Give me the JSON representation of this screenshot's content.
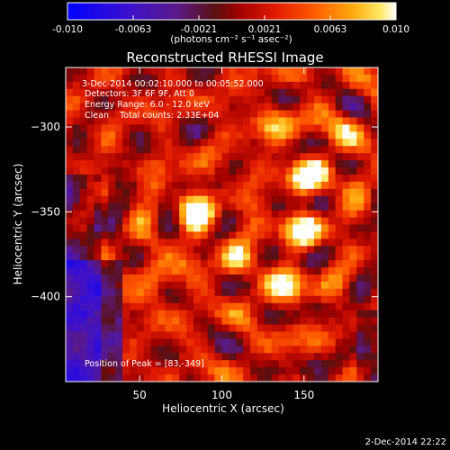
{
  "chart_data": {
    "type": "heatmap",
    "title": "Reconstructed RHESSI Image",
    "xlabel": "Heliocentric X (arcsec)",
    "ylabel": "Heliocentric Y (arcsec)",
    "xlim": [
      5,
      195
    ],
    "ylim": [
      -450,
      -265
    ],
    "xticks": [
      50,
      100,
      150
    ],
    "yticks": [
      -300,
      -350,
      -400
    ],
    "colorbar": {
      "range": [
        -0.01,
        0.01
      ],
      "ticks": [
        "-0.010",
        "-0.0063",
        "-0.0021",
        "0.0021",
        "0.0063",
        "0.010"
      ],
      "unit_label": "(photons cm⁻² s⁻¹ asec⁻²)"
    },
    "annotations": [
      "3-Dec-2014 00:02:10.000 to 00:05:52.000",
      "Detectors: 3F 6F 9F, Att 0",
      "Energy Range: 6.0 - 12.0 keV",
      "Clean    Total counts: 2.33E+04"
    ],
    "peak_text": "Position of Peak = [83,-349]",
    "sources": [
      {
        "x": 83,
        "y": -349,
        "value": 0.01
      },
      {
        "x": 155,
        "y": -328,
        "value": 0.0085
      },
      {
        "x": 150,
        "y": -360,
        "value": 0.0078
      },
      {
        "x": 140,
        "y": -395,
        "value": 0.0072
      },
      {
        "x": 108,
        "y": -378,
        "value": 0.0055
      },
      {
        "x": 60,
        "y": -390,
        "value": 0.0052
      },
      {
        "x": 130,
        "y": -300,
        "value": 0.0048
      },
      {
        "x": 175,
        "y": -305,
        "value": 0.0042
      }
    ]
  },
  "footer": {
    "timestamp": "2-Dec-2014 22:22"
  },
  "colors": {
    "background": "#000000",
    "text": "#ffffff"
  }
}
